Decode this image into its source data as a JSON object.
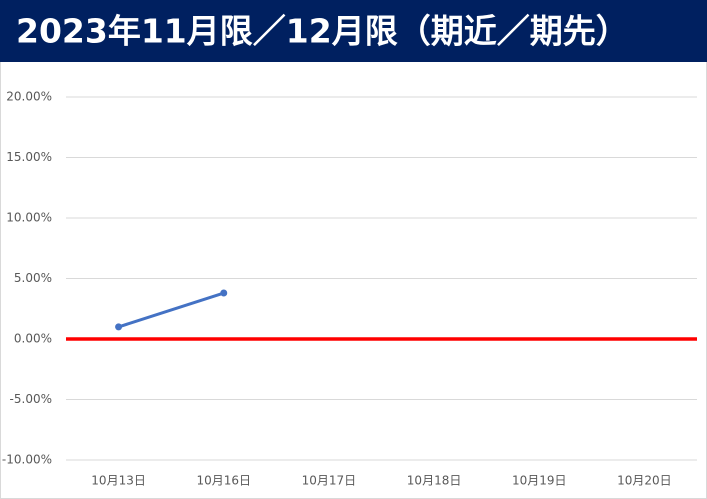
{
  "chart_data": {
    "type": "line",
    "title": "2023年11月限／12月限（期近／期先）",
    "categories": [
      "10月13日",
      "10月16日",
      "10月17日",
      "10月18日",
      "10月19日",
      "10月20日"
    ],
    "series": [
      {
        "color": "#4472c4",
        "values": [
          1.0,
          3.8,
          null,
          null,
          null,
          null
        ]
      }
    ],
    "ylim": [
      -10,
      20
    ],
    "yticks": [
      {
        "value": -10,
        "label": "-10.00%"
      },
      {
        "value": -5,
        "label": "-5.00%"
      },
      {
        "value": 0,
        "label": "0.00%"
      },
      {
        "value": 5,
        "label": "5.00%"
      },
      {
        "value": 10,
        "label": "10.00%"
      },
      {
        "value": 15,
        "label": "15.00%"
      },
      {
        "value": 20,
        "label": "20.00%"
      }
    ],
    "grid": true,
    "zero_line_color": "#ff0000"
  }
}
